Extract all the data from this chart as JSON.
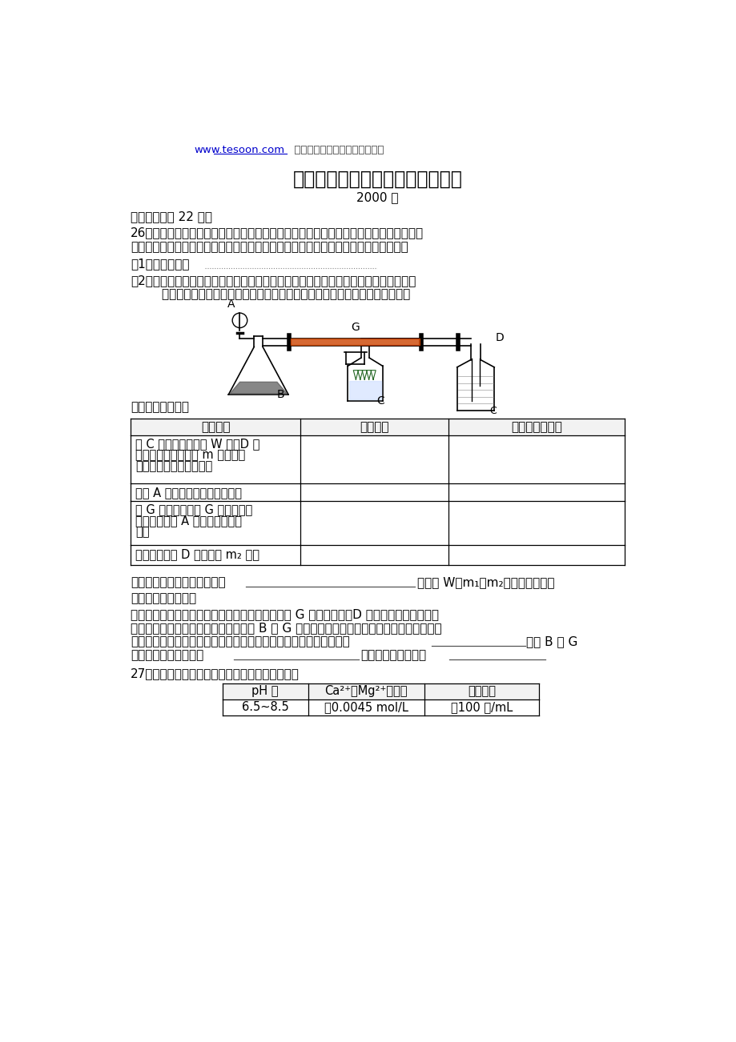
{
  "bg_color": "#ffffff",
  "url_text": "www.tesoon.com",
  "url_color": "#0000cc",
  "header_rest": "  天星教育网版权所有，侵权必究",
  "title": "高考化学试卷分类汇总（实验题）",
  "year": "2000 年",
  "section": "五、（本题共 22 分）",
  "q26_line1": "26．某课外活动小组加热炭粉（过量）和氧化铜的混合物，再用下图装置，对获得的铜粉",
  "q26_line2": "（含炭）样品进行实验。图中铁架台等装置已略去。请你帮助他们完成下列实验报告。",
  "q26_2_line1": "（2）实验用品：仪器：天平、分液漏斗、锥形瓶、硬玻璃管、干燥管、酒精灯、洗气瓶",
  "q26_2_line2": "        药品：红褐色铜粉（含炭）样品、过氧化氢溶液、二氧化锰、碱石灰、浓硫酸",
  "san_header": "（三）实验内容：",
  "table_headers": [
    "实验过程",
    "实验现象",
    "有关化学方程式"
  ],
  "table_row1": "在 C 中加入样品标本 W 克，D 中\n装入精品后并称量为 m 克。连接\n好仪器后，检查气密性。",
  "table_row2": "打开 A 的活塞，慢慢洋加溶液。",
  "table_row3": "对 G 进行加热。当 G 中药品充分\n反应后。关闭 A 的活塞。停止加\n热。",
  "table_row4": "冷却后，称量 D 的质量为 m₂ 克。",
  "wu_header": "（五）问题和讨论：",
  "discuss_line1": "实验完成后，老师评议说：按上述实验设计，即使 G 中反应完全、D 中吸收完全，也不会得",
  "discuss_line2": "出正确的结果。经讨论，有同学提出在 B 与 G 之间加入一个装置。再次实验后，得到了较正",
  "discuss_line3a": "确的结果。那么，原来实验所测得的钢的质量分数偏小的原因可能是",
  "discuss_line3b": "，在 B 与 G",
  "discuss_line4a": "之间加入的装置可以是",
  "discuss_line4b": "，其中盛放的药品是",
  "q27_line1": "27．我国规定饮用水质量标准必须符合下列要求：",
  "q27_table_headers": [
    "pH 值",
    "Ca²⁺、Mg²⁺总浓度",
    "细菌总数"
  ],
  "q27_table_row": [
    "6.5~8.5",
    "＜0.0045 mol/L",
    "＜100 个/mL"
  ],
  "text_color": "#000000"
}
